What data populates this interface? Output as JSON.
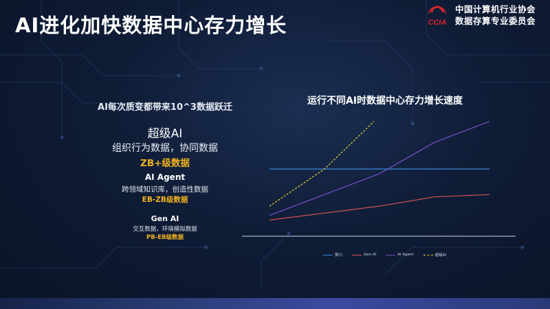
{
  "slide": {
    "title": "AI进化加快数据中心存力增长"
  },
  "logo": {
    "mark_text": "CCIA",
    "line1": "中国计算机行业协会",
    "line2": "数据存算专业委员会"
  },
  "left_panel": {
    "lead": "AI每次质变都带来10^3数据跃迁",
    "tiers": [
      {
        "name": "超级AI",
        "desc": "组织行为数据，协同数据",
        "tag": "ZB+级数据"
      },
      {
        "name": "AI Agent",
        "desc": "跨领域知识库，创造性数据",
        "tag": "EB-ZB级数据"
      },
      {
        "name": "Gen AI",
        "desc": "交互数据，环境模拟数据",
        "tag": "PB-EB级数据"
      }
    ]
  },
  "colors": {
    "accent_gold": "#f0b31e",
    "series_blue": "#3f86e0",
    "series_red": "#d9534f",
    "series_purple": "#7b52c9",
    "series_yellow": "#e8d23a"
  },
  "chart_data": {
    "type": "line",
    "title": "运行不同AI时数据中心存力增长速度",
    "xlabel": "",
    "ylabel": "",
    "x": [
      0,
      1,
      2,
      3,
      4
    ],
    "ylim": [
      0,
      10
    ],
    "grid": false,
    "legend_position": "bottom",
    "series": [
      {
        "name": "算力",
        "color": "#3f86e0",
        "style": "solid",
        "x": [
          0,
          4
        ],
        "values": [
          5.2,
          5.2
        ]
      },
      {
        "name": "Gen AI",
        "color": "#d9534f",
        "style": "solid",
        "x": [
          0,
          1,
          2,
          3,
          4
        ],
        "values": [
          0.8,
          1.4,
          2.0,
          2.8,
          3.0
        ]
      },
      {
        "name": "AI Agent",
        "color": "#7b52c9",
        "style": "solid",
        "x": [
          0,
          1,
          2,
          3,
          4
        ],
        "values": [
          1.2,
          3.0,
          4.8,
          7.5,
          9.3
        ]
      },
      {
        "name": "超级AI",
        "color": "#e8d23a",
        "style": "dashed",
        "x": [
          0,
          1,
          1.9
        ],
        "values": [
          2.0,
          5.2,
          9.3
        ]
      }
    ]
  }
}
